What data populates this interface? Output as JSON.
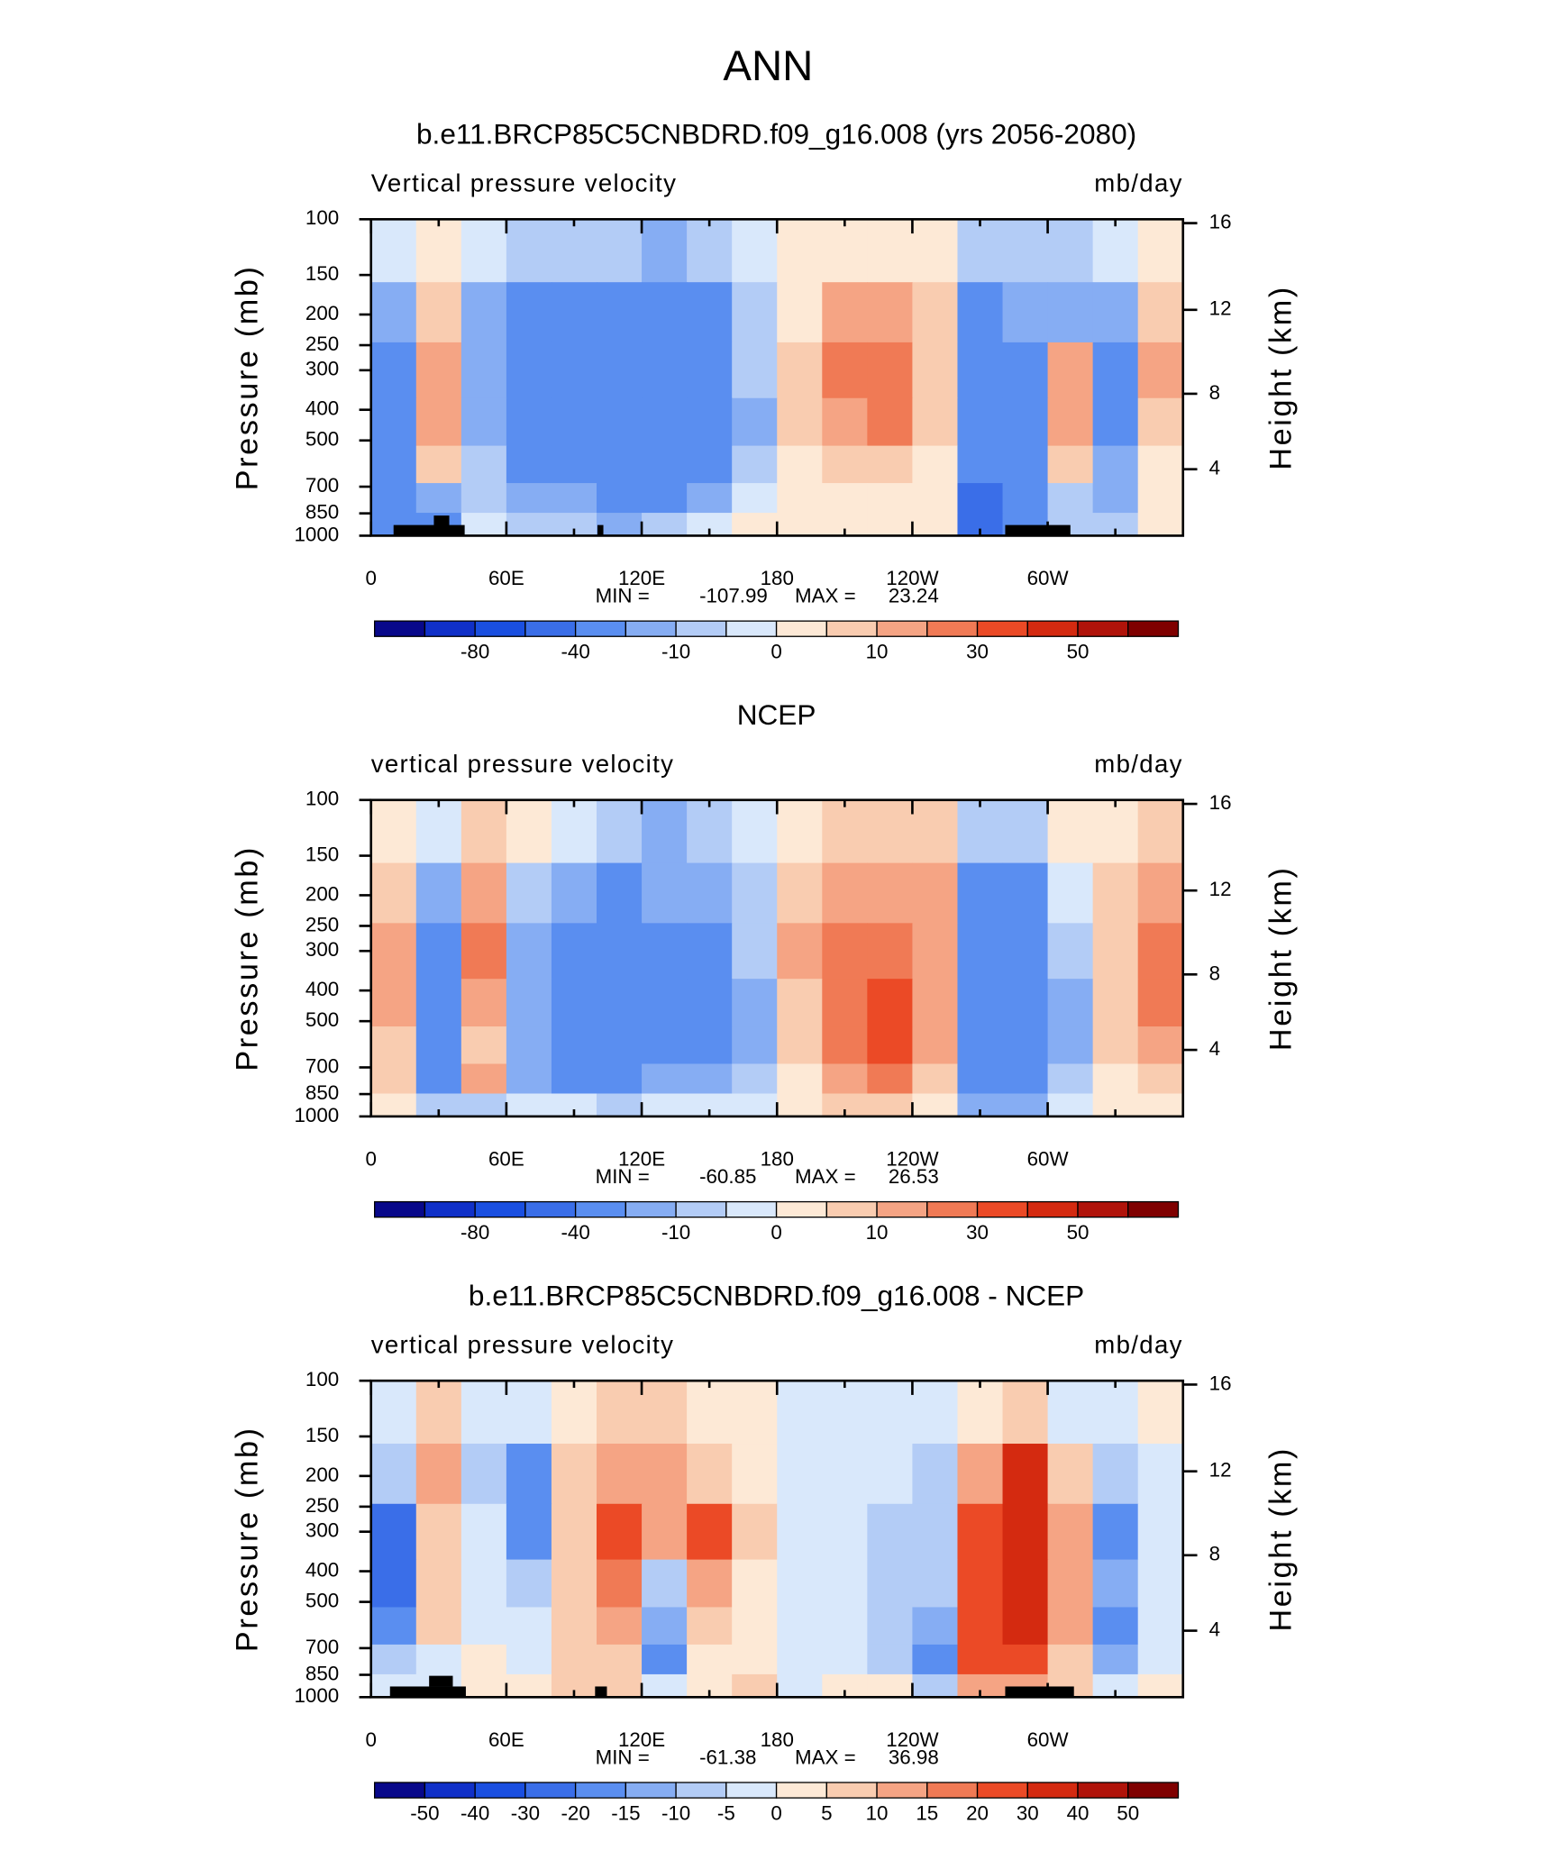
{
  "title": "ANN",
  "chart_data": [
    {
      "type": "contour",
      "title": "b.e11.BRCP85C5CNBDRD.f09_g16.008 (yrs 2056-2080)",
      "left_label": "Vertical pressure velocity",
      "right_label": "mb/day",
      "ylabel": "Pressure (mb)",
      "y2label": "Height (km)",
      "xlim": [
        0,
        360
      ],
      "xticks": [
        0,
        {
          "value": 60,
          "label": "60E"
        },
        {
          "value": 120,
          "label": "120E"
        },
        180,
        {
          "value": 240,
          "label": "120W"
        },
        {
          "value": 300,
          "label": "60W"
        }
      ],
      "ylim": [
        1000,
        100
      ],
      "log_y": true,
      "yticks": [
        100,
        150,
        200,
        250,
        300,
        400,
        500,
        700,
        850,
        1000
      ],
      "y2ticks": [
        4,
        8,
        12,
        16
      ],
      "min_label": "MIN =",
      "min": -107.99,
      "max_label": "MAX =",
      "max": 23.24,
      "x": [
        10,
        30,
        50,
        70,
        90,
        110,
        130,
        150,
        170,
        190,
        210,
        230,
        250,
        270,
        290,
        310,
        330,
        350
      ],
      "y": [
        125,
        200,
        300,
        450,
        600,
        775,
        925
      ],
      "z": [
        [
          -5,
          2,
          -5,
          -10,
          -10,
          -10,
          -20,
          -10,
          -5,
          2,
          2,
          2,
          2,
          -10,
          -10,
          -10,
          -5,
          2
        ],
        [
          -20,
          5,
          -20,
          -40,
          -40,
          -30,
          -40,
          -30,
          -10,
          2,
          10,
          10,
          5,
          -30,
          -20,
          -20,
          -20,
          5
        ],
        [
          -40,
          10,
          -20,
          -40,
          -40,
          -40,
          -40,
          -40,
          -10,
          5,
          20,
          20,
          5,
          -40,
          -40,
          10,
          -30,
          10
        ],
        [
          -40,
          10,
          -20,
          -40,
          -40,
          -40,
          -40,
          -40,
          -20,
          5,
          10,
          20,
          5,
          -40,
          -40,
          10,
          -30,
          5
        ],
        [
          -30,
          5,
          -10,
          -30,
          -30,
          -40,
          -40,
          -40,
          -10,
          2,
          5,
          5,
          2,
          -40,
          -40,
          5,
          -20,
          2
        ],
        [
          -40,
          -20,
          -10,
          -20,
          -20,
          -40,
          -30,
          -20,
          -5,
          2,
          2,
          2,
          2,
          -60,
          -40,
          -10,
          -20,
          2
        ],
        [
          -40,
          -40,
          -5,
          -10,
          -10,
          -20,
          -10,
          -5,
          2,
          2,
          2,
          2,
          2,
          -60,
          -40,
          -10,
          -10,
          2
        ]
      ],
      "colorbar": {
        "levels": [
          -100,
          -80,
          -60,
          -40,
          -20,
          -10,
          -5,
          0,
          5,
          10,
          20,
          30,
          40,
          50,
          60
        ],
        "label_every": 2,
        "colors": [
          "#08088a",
          "#1030c8",
          "#1a4fe0",
          "#3a6ee8",
          "#5a8ef0",
          "#86adf3",
          "#b3ccf6",
          "#d9e8fb",
          "#fde9d6",
          "#f9ccb0",
          "#f5a484",
          "#f07a55",
          "#eb4a26",
          "#d42a10",
          "#b0130a",
          "#7f0000"
        ]
      }
    },
    {
      "type": "contour",
      "title": "NCEP",
      "left_label": "vertical pressure velocity",
      "right_label": "mb/day",
      "ylabel": "Pressure (mb)",
      "y2label": "Height (km)",
      "xlim": [
        0,
        360
      ],
      "xticks": [
        0,
        {
          "value": 60,
          "label": "60E"
        },
        {
          "value": 120,
          "label": "120E"
        },
        180,
        {
          "value": 240,
          "label": "120W"
        },
        {
          "value": 300,
          "label": "60W"
        }
      ],
      "ylim": [
        1000,
        100
      ],
      "log_y": true,
      "yticks": [
        100,
        150,
        200,
        250,
        300,
        400,
        500,
        700,
        850,
        1000
      ],
      "y2ticks": [
        4,
        8,
        12,
        16
      ],
      "min_label": "MIN =",
      "min": -60.85,
      "max_label": "MAX =",
      "max": 26.53,
      "x": [
        10,
        30,
        50,
        70,
        90,
        110,
        130,
        150,
        170,
        190,
        210,
        230,
        250,
        270,
        290,
        310,
        330,
        350
      ],
      "y": [
        125,
        200,
        300,
        450,
        600,
        775,
        925
      ],
      "z": [
        [
          2,
          -5,
          5,
          2,
          -5,
          -10,
          -20,
          -10,
          -5,
          2,
          5,
          5,
          5,
          -10,
          -10,
          2,
          2,
          5
        ],
        [
          5,
          -20,
          10,
          -10,
          -20,
          -30,
          -20,
          -20,
          -10,
          5,
          10,
          10,
          10,
          -40,
          -30,
          -5,
          5,
          10
        ],
        [
          10,
          -40,
          20,
          -20,
          -40,
          -40,
          -30,
          -40,
          -10,
          10,
          20,
          20,
          10,
          -40,
          -40,
          -10,
          5,
          20
        ],
        [
          10,
          -40,
          10,
          -20,
          -40,
          -40,
          -30,
          -40,
          -20,
          5,
          20,
          30,
          10,
          -40,
          -40,
          -20,
          5,
          20
        ],
        [
          5,
          -40,
          5,
          -20,
          -30,
          -30,
          -30,
          -40,
          -20,
          5,
          20,
          30,
          10,
          -40,
          -40,
          -20,
          5,
          10
        ],
        [
          5,
          -30,
          10,
          -20,
          -30,
          -30,
          -20,
          -20,
          -10,
          2,
          10,
          20,
          5,
          -40,
          -40,
          -10,
          2,
          5
        ],
        [
          2,
          -10,
          -10,
          -5,
          -5,
          -10,
          -5,
          -5,
          -5,
          2,
          5,
          5,
          2,
          -20,
          -20,
          -5,
          2,
          2
        ]
      ],
      "colorbar": {
        "levels": [
          -100,
          -80,
          -60,
          -40,
          -20,
          -10,
          -5,
          0,
          5,
          10,
          20,
          30,
          40,
          50,
          60
        ],
        "label_every": 2,
        "colors": [
          "#08088a",
          "#1030c8",
          "#1a4fe0",
          "#3a6ee8",
          "#5a8ef0",
          "#86adf3",
          "#b3ccf6",
          "#d9e8fb",
          "#fde9d6",
          "#f9ccb0",
          "#f5a484",
          "#f07a55",
          "#eb4a26",
          "#d42a10",
          "#b0130a",
          "#7f0000"
        ]
      }
    },
    {
      "type": "contour",
      "title": "b.e11.BRCP85C5CNBDRD.f09_g16.008 - NCEP",
      "left_label": "vertical pressure velocity",
      "right_label": "mb/day",
      "ylabel": "Pressure (mb)",
      "y2label": "Height (km)",
      "xlim": [
        0,
        360
      ],
      "xticks": [
        0,
        {
          "value": 60,
          "label": "60E"
        },
        {
          "value": 120,
          "label": "120E"
        },
        180,
        {
          "value": 240,
          "label": "120W"
        },
        {
          "value": 300,
          "label": "60W"
        }
      ],
      "ylim": [
        1000,
        100
      ],
      "log_y": true,
      "yticks": [
        100,
        150,
        200,
        250,
        300,
        400,
        500,
        700,
        850,
        1000
      ],
      "y2ticks": [
        4,
        8,
        12,
        16
      ],
      "min_label": "MIN =",
      "min": -61.38,
      "max_label": "MAX =",
      "max": 36.98,
      "x": [
        10,
        30,
        50,
        70,
        90,
        110,
        130,
        150,
        170,
        190,
        210,
        230,
        250,
        270,
        290,
        310,
        330,
        350
      ],
      "y": [
        125,
        200,
        300,
        450,
        600,
        775,
        925
      ],
      "z": [
        [
          -5,
          5,
          -5,
          -5,
          2,
          5,
          5,
          2,
          2,
          -2,
          -2,
          -2,
          -2,
          2,
          5,
          -2,
          -2,
          2
        ],
        [
          -10,
          10,
          -10,
          -20,
          5,
          10,
          10,
          5,
          2,
          -2,
          -2,
          -5,
          -10,
          10,
          30,
          5,
          -10,
          -2
        ],
        [
          -30,
          5,
          -5,
          -20,
          5,
          20,
          10,
          20,
          5,
          -2,
          -5,
          -10,
          -10,
          20,
          30,
          10,
          -20,
          -5
        ],
        [
          -30,
          5,
          -5,
          -10,
          5,
          15,
          -10,
          10,
          2,
          -2,
          -5,
          -10,
          -10,
          20,
          30,
          10,
          -15,
          -5
        ],
        [
          -20,
          5,
          -5,
          -5,
          5,
          10,
          -15,
          5,
          2,
          -2,
          -5,
          -10,
          -15,
          20,
          30,
          10,
          -20,
          -2
        ],
        [
          -10,
          -5,
          2,
          -5,
          5,
          5,
          -20,
          2,
          2,
          -2,
          -2,
          -10,
          -20,
          20,
          20,
          5,
          -15,
          -2
        ],
        [
          -5,
          -5,
          2,
          2,
          5,
          5,
          -5,
          2,
          5,
          -2,
          2,
          2,
          -10,
          10,
          10,
          5,
          -2,
          2
        ]
      ],
      "colorbar": {
        "levels": [
          -50,
          -40,
          -30,
          -20,
          -15,
          -10,
          -5,
          0,
          5,
          10,
          15,
          20,
          30,
          40,
          50
        ],
        "label_every": 1,
        "colors": [
          "#08088a",
          "#1030c8",
          "#1a4fe0",
          "#3a6ee8",
          "#5a8ef0",
          "#86adf3",
          "#b3ccf6",
          "#d9e8fb",
          "#fde9d6",
          "#f9ccb0",
          "#f5a484",
          "#f07a55",
          "#eb4a26",
          "#d42a10",
          "#b0130a",
          "#7f0000"
        ]
      }
    }
  ]
}
